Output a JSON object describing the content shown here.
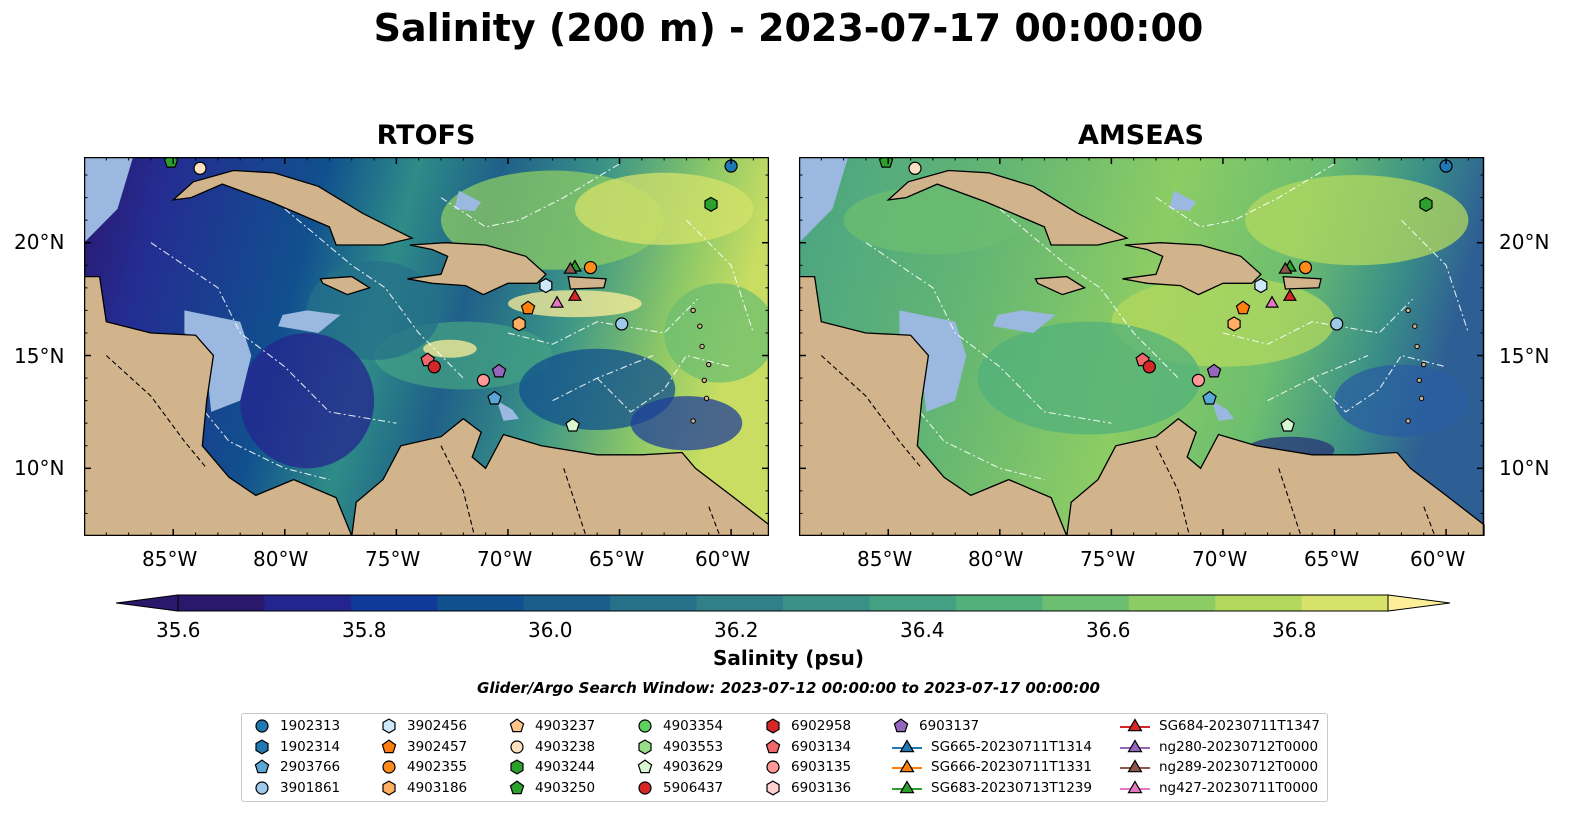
{
  "title": "Salinity (200 m) - 2023-07-17 00:00:00",
  "panels": [
    {
      "id": "rtofs",
      "title": "RTOFS"
    },
    {
      "id": "amseas",
      "title": "AMSEAS"
    }
  ],
  "map": {
    "lon_range": [
      -89,
      -58.3
    ],
    "lat_range": [
      7,
      23.8
    ],
    "lon_ticks": [
      "85°W",
      "80°W",
      "75°W",
      "70°W",
      "65°W",
      "60°W"
    ],
    "lat_ticks": [
      "20°N",
      "15°N",
      "10°N"
    ],
    "colors": {
      "land": "#d2b48c",
      "shallow": "#9ab8e0",
      "coast": "#000000"
    }
  },
  "colorbar": {
    "ticks": [
      "35.6",
      "35.8",
      "36.0",
      "36.2",
      "36.4",
      "36.6",
      "36.8"
    ],
    "range": [
      35.5,
      36.9
    ],
    "extend": "both",
    "colormap": "haline",
    "label": "Salinity (psu)"
  },
  "search_window": "Glider/Argo Search Window: 2023-07-12 00:00:00 to 2023-07-17 00:00:00",
  "legend": {
    "items": [
      {
        "label": "1902313",
        "marker": "circle",
        "color": "#1f77b4"
      },
      {
        "label": "1902314",
        "marker": "hexagon",
        "color": "#1f77b4"
      },
      {
        "label": "2903766",
        "marker": "pentagon",
        "color": "#5aa6d8"
      },
      {
        "label": "3901861",
        "marker": "circle",
        "color": "#9ecae9"
      },
      {
        "label": "3902456",
        "marker": "hexagon",
        "color": "#cfe8fa"
      },
      {
        "label": "3902457",
        "marker": "pentagon",
        "color": "#ff7f0e"
      },
      {
        "label": "4902355",
        "marker": "circle",
        "color": "#ff8c1a"
      },
      {
        "label": "4903186",
        "marker": "hexagon",
        "color": "#ffae62"
      },
      {
        "label": "4903237",
        "marker": "pentagon",
        "color": "#ffc488"
      },
      {
        "label": "4903238",
        "marker": "circle",
        "color": "#ffe0c0"
      },
      {
        "label": "4903244",
        "marker": "hexagon",
        "color": "#2ca02c"
      },
      {
        "label": "4903250",
        "marker": "pentagon",
        "color": "#2ca02c"
      },
      {
        "label": "4903354",
        "marker": "circle",
        "color": "#5fcf5f"
      },
      {
        "label": "4903553",
        "marker": "hexagon",
        "color": "#98df8a"
      },
      {
        "label": "4903629",
        "marker": "pentagon",
        "color": "#d9f7d0"
      },
      {
        "label": "5906437",
        "marker": "circle",
        "color": "#d62728"
      },
      {
        "label": "6902958",
        "marker": "hexagon",
        "color": "#d62728"
      },
      {
        "label": "6903134",
        "marker": "pentagon",
        "color": "#f0686a"
      },
      {
        "label": "6903135",
        "marker": "circle",
        "color": "#ff9896"
      },
      {
        "label": "6903136",
        "marker": "hexagon",
        "color": "#ffd0d0"
      },
      {
        "label": "6903137",
        "marker": "pentagon",
        "color": "#9467bd"
      },
      {
        "label": "SG665-20230711T1314",
        "marker": "triangle",
        "color": "#1f77b4"
      },
      {
        "label": "SG666-20230711T1331",
        "marker": "triangle",
        "color": "#ff7f0e"
      },
      {
        "label": "SG683-20230713T1239",
        "marker": "triangle",
        "color": "#2ca02c"
      },
      {
        "label": "SG684-20230711T1347",
        "marker": "triangle",
        "color": "#d62728"
      },
      {
        "label": "ng280-20230712T0000",
        "marker": "triangle",
        "color": "#9467bd"
      },
      {
        "label": "ng289-20230712T0000",
        "marker": "triangle",
        "color": "#8c564b"
      },
      {
        "label": "ng427-20230711T0000",
        "marker": "triangle",
        "color": "#e377c2"
      }
    ]
  },
  "observations": [
    {
      "id": "1902313",
      "lon": -60.0,
      "lat": 23.4
    },
    {
      "id": "4903250",
      "lon": -85.1,
      "lat": 23.6
    },
    {
      "id": "4903238",
      "lon": -83.8,
      "lat": 23.3
    },
    {
      "id": "4903244",
      "lon": -60.9,
      "lat": 21.7
    },
    {
      "id": "4902355",
      "lon": -66.3,
      "lat": 18.9
    },
    {
      "id": "SG683-20230713T1239",
      "lon": -67.0,
      "lat": 18.9
    },
    {
      "id": "ng289-20230712T0000",
      "lon": -67.2,
      "lat": 18.8
    },
    {
      "id": "3902456",
      "lon": -68.3,
      "lat": 18.1
    },
    {
      "id": "SG684-20230711T1347",
      "lon": -67.0,
      "lat": 17.6
    },
    {
      "id": "ng427-20230711T0000",
      "lon": -67.8,
      "lat": 17.3
    },
    {
      "id": "3902457",
      "lon": -69.1,
      "lat": 17.1
    },
    {
      "id": "4903186",
      "lon": -69.5,
      "lat": 16.4
    },
    {
      "id": "3901861",
      "lon": -64.9,
      "lat": 16.4
    },
    {
      "id": "6903134",
      "lon": -73.6,
      "lat": 14.8
    },
    {
      "id": "5906437",
      "lon": -73.3,
      "lat": 14.5
    },
    {
      "id": "6903137",
      "lon": -70.4,
      "lat": 14.3
    },
    {
      "id": "6903135",
      "lon": -71.1,
      "lat": 13.9
    },
    {
      "id": "2903766",
      "lon": -70.6,
      "lat": 13.1
    },
    {
      "id": "4903629",
      "lon": -67.1,
      "lat": 11.9
    }
  ]
}
